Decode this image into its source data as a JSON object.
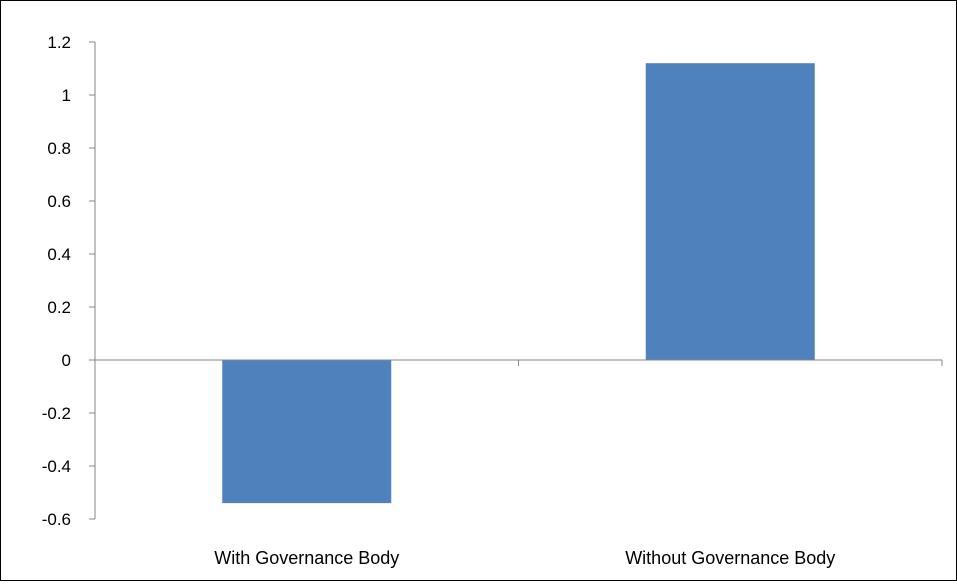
{
  "chart_data": {
    "type": "bar",
    "title": "",
    "xlabel": "",
    "ylabel": "",
    "categories": [
      "With Governance Body",
      "Without Governance Body"
    ],
    "values": [
      -0.54,
      1.12
    ],
    "ylim": [
      -0.6,
      1.2
    ],
    "yticks": [
      "-0.6",
      "-0.4",
      "-0.2",
      "0",
      "0.2",
      "0.4",
      "0.6",
      "0.8",
      "1",
      "1.2"
    ],
    "grid": false,
    "legend": "none",
    "bar_color": "#4F81BD",
    "axis_color": "#868686"
  }
}
